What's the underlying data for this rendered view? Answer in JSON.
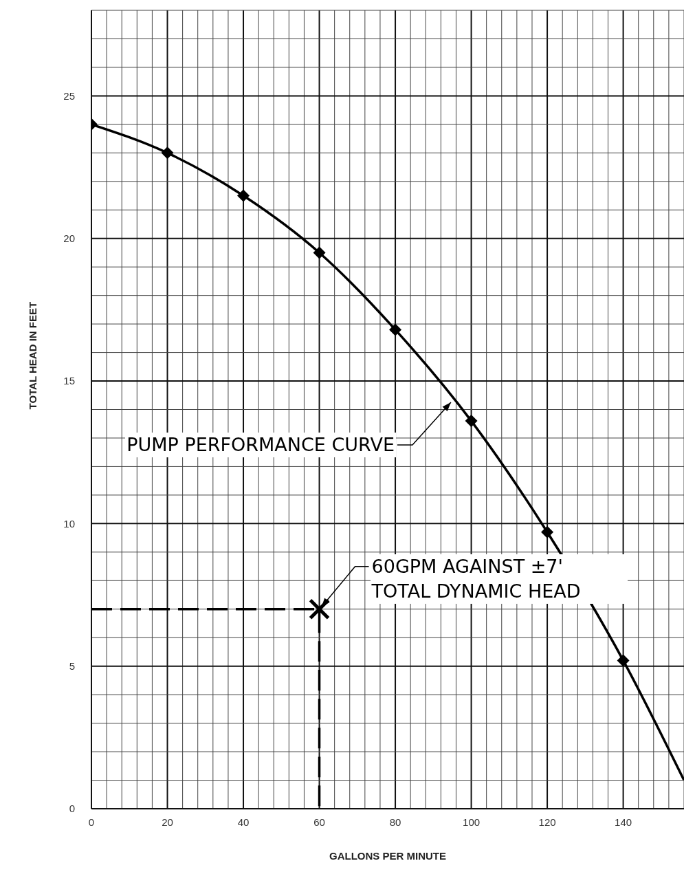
{
  "chart_data": {
    "type": "line",
    "xlabel": "GALLONS PER MINUTE",
    "ylabel": "TOTAL HEAD IN FEET",
    "xlim": [
      0,
      156
    ],
    "ylim": [
      0,
      28
    ],
    "xticks": [
      0,
      20,
      40,
      60,
      80,
      100,
      120,
      140
    ],
    "yticks": [
      0,
      5,
      10,
      15,
      20,
      25
    ],
    "grid": true,
    "series": [
      {
        "color": "#000000",
        "marker": "none",
        "line_style": "solid",
        "x": [
          0,
          20,
          40,
          60,
          80,
          100,
          120,
          140,
          156
        ],
        "values": [
          24,
          23,
          21.5,
          19.5,
          16.8,
          13.6,
          9.7,
          5.2,
          1.0
        ]
      },
      {
        "type": "scatter",
        "color": "#000000",
        "marker": "diamond",
        "x": [
          0,
          20,
          40,
          60,
          80,
          100,
          120,
          140
        ],
        "values": [
          24,
          23,
          21.5,
          19.5,
          16.8,
          13.6,
          9.7,
          5.2
        ]
      },
      {
        "color": "#000000",
        "marker": "none",
        "line_style": "dashed",
        "x": [
          0,
          60,
          60
        ],
        "values": [
          7,
          7,
          0
        ]
      },
      {
        "type": "scatter",
        "color": "#000000",
        "marker": "cross",
        "x": [
          60
        ],
        "values": [
          7
        ]
      }
    ],
    "annotations": [
      {
        "text": "PUMP PERFORMANCE CURVE",
        "x": 95,
        "y": 14.3
      },
      {
        "text": "60GPM AGAINST ±7' TOTAL DYNAMIC HEAD",
        "x": 60,
        "y": 7
      }
    ]
  }
}
